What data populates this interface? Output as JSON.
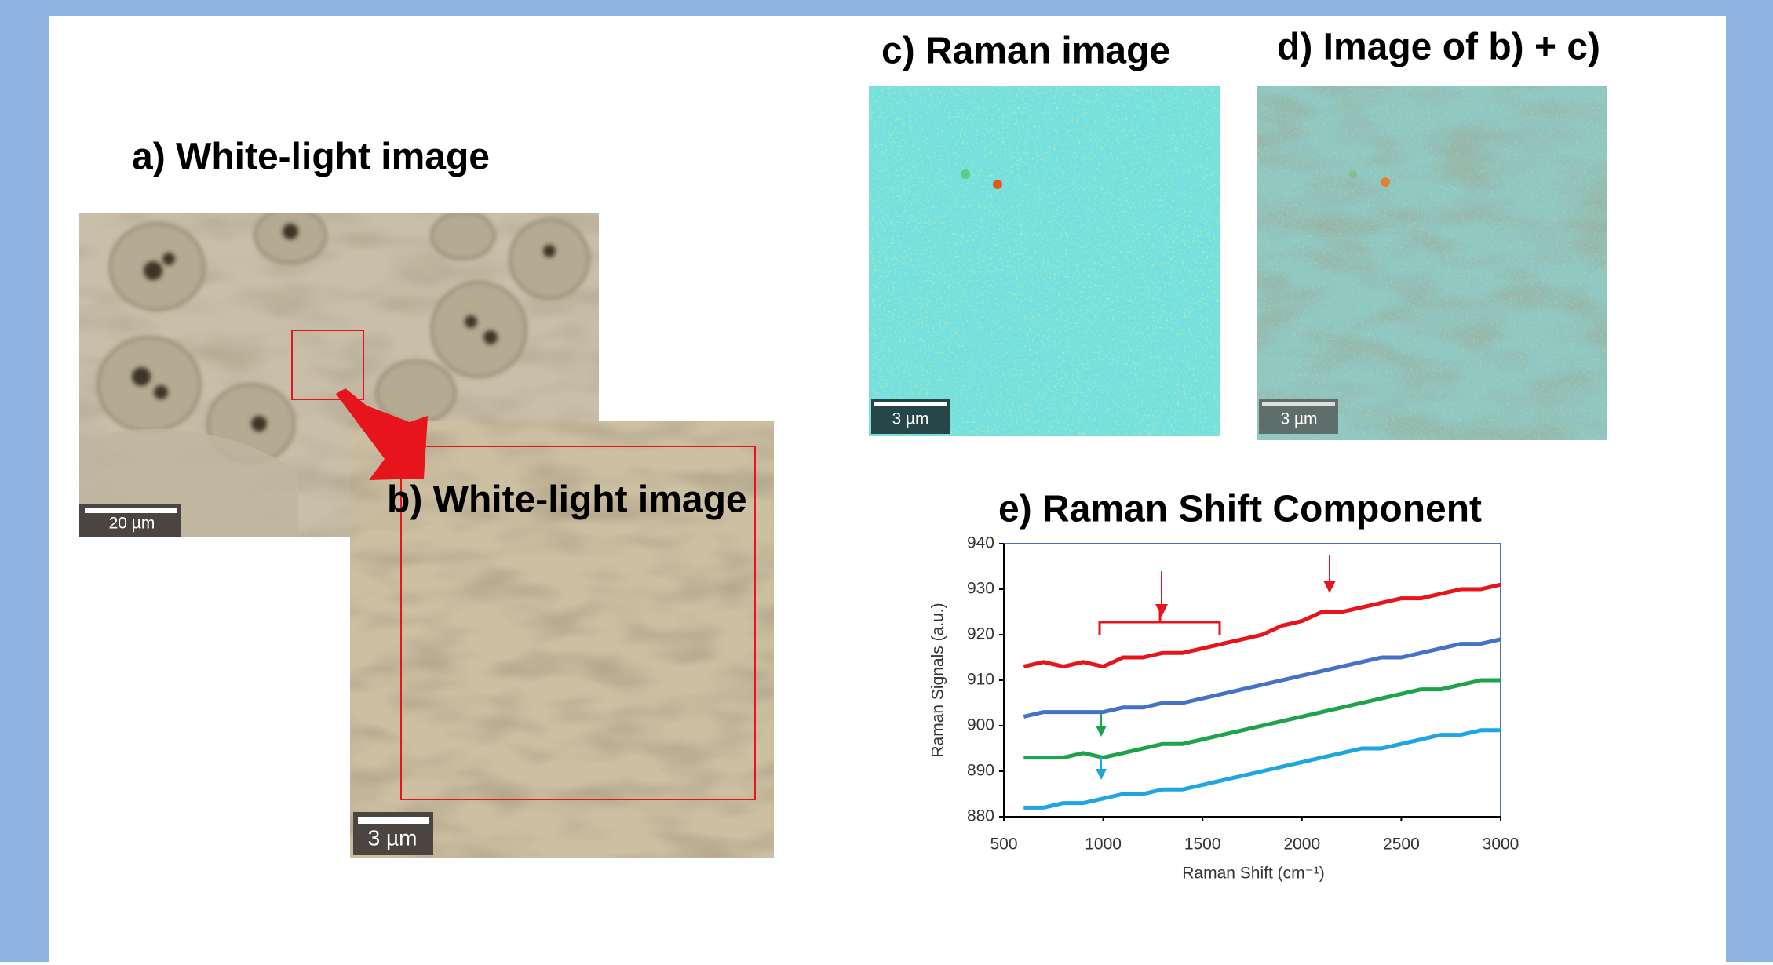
{
  "panels": {
    "a": {
      "title": "a) White-light image",
      "scale_bar": "20 µm"
    },
    "b": {
      "title": "b) White-light image",
      "scale_bar": "3 µm"
    },
    "c": {
      "title": "c) Raman image",
      "scale_bar": "3 µm"
    },
    "d": {
      "title": "d) Image of b) + c)",
      "scale_bar": "3 µm"
    }
  },
  "chart_data": {
    "type": "line",
    "title": "e) Raman Shift Component",
    "x_label": "Raman Shift (cm⁻¹)",
    "y_label": "Raman Signals (a.u.)",
    "x": [
      600,
      700,
      800,
      900,
      1000,
      1100,
      1200,
      1300,
      1400,
      1500,
      1600,
      1700,
      1800,
      1900,
      2000,
      2100,
      2200,
      2300,
      2400,
      2500,
      2600,
      2700,
      2800,
      2900,
      3000
    ],
    "series": [
      {
        "color": "#e8141b",
        "values": [
          913,
          914,
          913,
          914,
          913,
          915,
          915,
          916,
          916,
          917,
          918,
          919,
          920,
          922,
          923,
          925,
          925,
          926,
          927,
          928,
          928,
          929,
          930,
          930,
          931
        ]
      },
      {
        "color": "#4472c4",
        "values": [
          902,
          903,
          903,
          903,
          903,
          904,
          904,
          905,
          905,
          906,
          907,
          908,
          909,
          910,
          911,
          912,
          913,
          914,
          915,
          915,
          916,
          917,
          918,
          918,
          919
        ]
      },
      {
        "color": "#1fa34a",
        "values": [
          893,
          893,
          893,
          894,
          893,
          894,
          895,
          896,
          896,
          897,
          898,
          899,
          900,
          901,
          902,
          903,
          904,
          905,
          906,
          907,
          908,
          908,
          909,
          910,
          910
        ]
      },
      {
        "color": "#1ea6e0",
        "values": [
          882,
          882,
          883,
          883,
          884,
          885,
          885,
          886,
          886,
          887,
          888,
          889,
          890,
          891,
          892,
          893,
          894,
          895,
          895,
          896,
          897,
          898,
          898,
          899,
          899
        ]
      }
    ],
    "xlim": [
      500,
      3000
    ],
    "xticks": [
      500,
      1000,
      1500,
      2000,
      2500,
      3000
    ],
    "ylim": [
      880,
      940
    ],
    "yticks": [
      880,
      890,
      900,
      910,
      920,
      930,
      940
    ]
  }
}
